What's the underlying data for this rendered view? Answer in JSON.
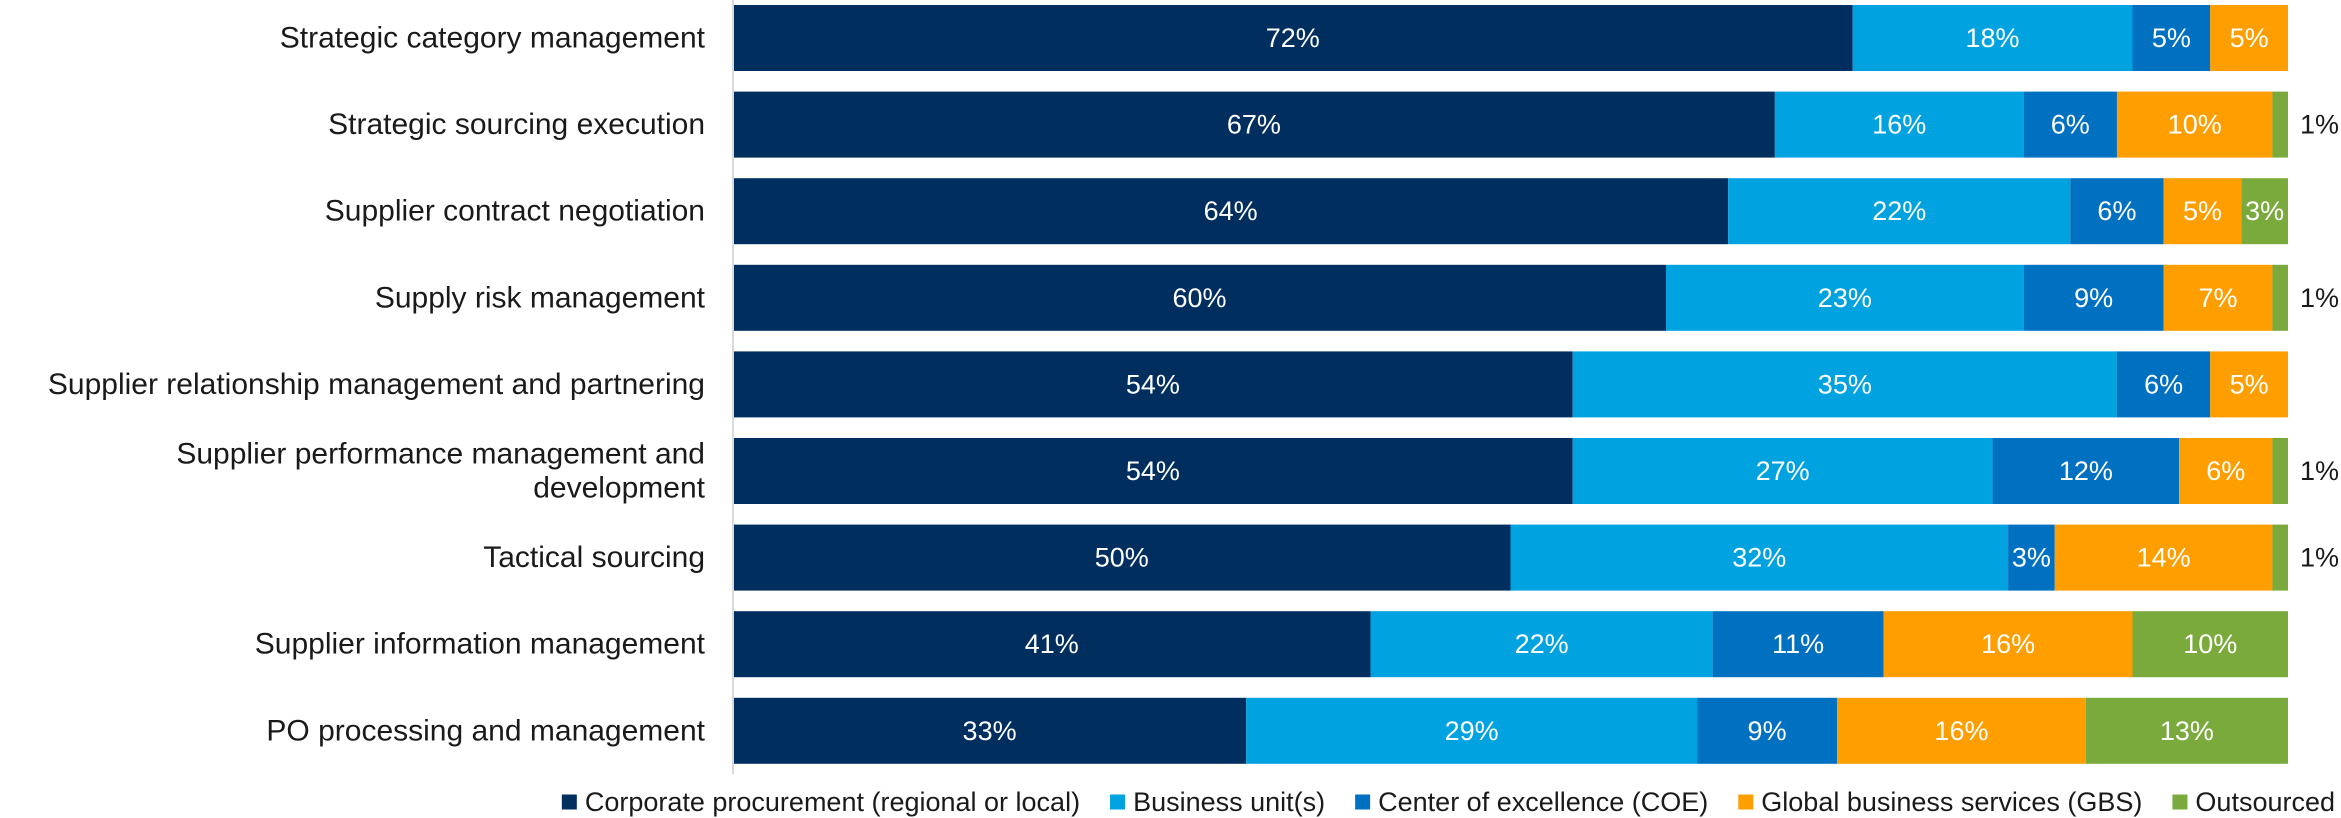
{
  "chart_data": {
    "type": "bar",
    "orientation": "horizontal",
    "stacked": true,
    "categories": [
      "Strategic category management",
      "Strategic sourcing execution",
      "Supplier contract negotiation",
      "Supply risk management",
      "Supplier relationship management and partnering",
      "Supplier performance management and development",
      "Tactical sourcing",
      "Supplier information management",
      "PO processing and management"
    ],
    "series": [
      {
        "name": "Corporate procurement (regional or local)",
        "color": "#002f5f",
        "values": [
          72,
          67,
          64,
          60,
          54,
          54,
          50,
          41,
          33
        ]
      },
      {
        "name": "Business unit(s)",
        "color": "#00a3e0",
        "values": [
          18,
          16,
          22,
          23,
          35,
          27,
          32,
          22,
          29
        ]
      },
      {
        "name": "Center of excellence (COE)",
        "color": "#0070c0",
        "values": [
          5,
          6,
          6,
          9,
          6,
          12,
          3,
          11,
          9
        ]
      },
      {
        "name": "Global business services (GBS)",
        "color": "#ff9e00",
        "values": [
          5,
          10,
          5,
          7,
          5,
          6,
          14,
          16,
          16
        ]
      },
      {
        "name": "Outsourced",
        "color": "#7aaa3c",
        "values": [
          0,
          1,
          3,
          1,
          0,
          1,
          1,
          10,
          13
        ]
      }
    ],
    "value_format": "{v}%",
    "xlim": [
      0,
      100
    ],
    "grid": false,
    "legend_position": "bottom"
  }
}
